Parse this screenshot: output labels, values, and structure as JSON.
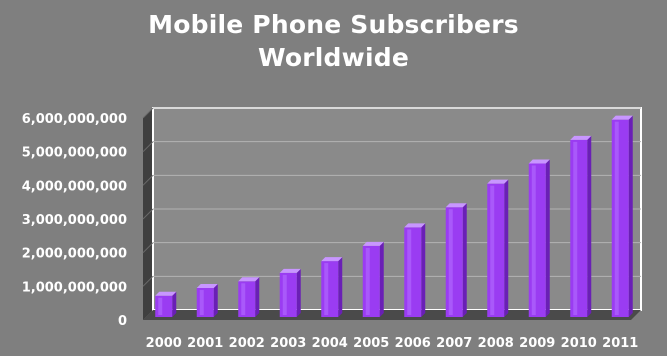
{
  "chart_data": {
    "type": "bar",
    "title_lines": [
      "Mobile Phone Subscribers",
      "Worldwide"
    ],
    "categories": [
      "2000",
      "2001",
      "2002",
      "2003",
      "2004",
      "2005",
      "2006",
      "2007",
      "2008",
      "2009",
      "2010",
      "2011"
    ],
    "values": [
      720000000,
      950000000,
      1150000000,
      1400000000,
      1750000000,
      2200000000,
      2750000000,
      3350000000,
      4050000000,
      4650000000,
      5350000000,
      5950000000
    ],
    "y_ticks": [
      0,
      1000000000,
      2000000000,
      3000000000,
      4000000000,
      5000000000,
      6000000000
    ],
    "y_tick_labels": [
      "0",
      "1,000,000,000",
      "2,000,000,000",
      "3,000,000,000",
      "4,000,000,000",
      "5,000,000,000",
      "6,000,000,000"
    ],
    "ylim": [
      0,
      6000000000
    ],
    "grid": true,
    "legend": "none",
    "colors": {
      "background": "#7f7f7f",
      "plot_area": "#8a8a8a",
      "gridline": "#b3b3b3",
      "wall": "#3f3f3f",
      "bar_front": "#9a3cf2",
      "bar_side": "#6a1fb6",
      "bar_top": "#c896ff",
      "text": "#ffffff"
    }
  }
}
